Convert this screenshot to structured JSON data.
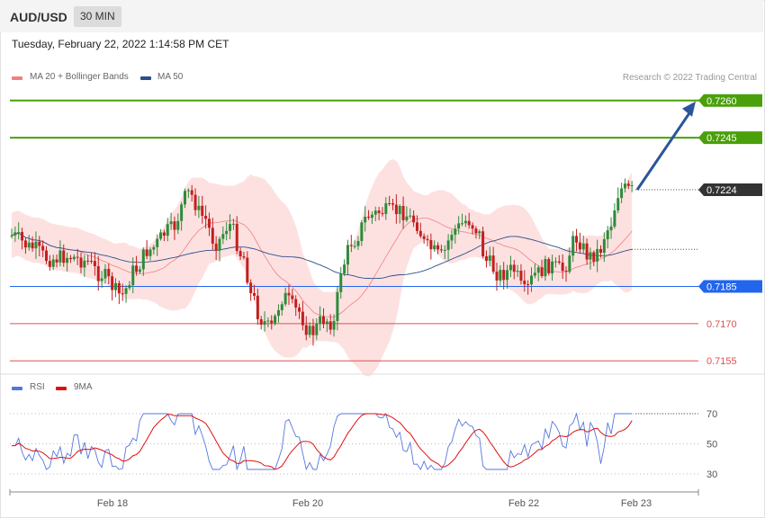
{
  "header": {
    "symbol": "AUD/USD",
    "timeframe": "30 MIN",
    "datetime": "Tuesday, February 22, 2022 1:14:58 PM CET",
    "credit": "Research © 2022 Trading Central"
  },
  "legend": {
    "ma20": "MA 20 + Bollinger Bands",
    "ma50": "MA 50",
    "rsi": "RSI",
    "rsi_ma": "9MA"
  },
  "colors": {
    "ma20": "#f08080",
    "ma50": "#2c4f8c",
    "bands": "#fde1e1",
    "up": "#2e8b3a",
    "down": "#c21f1f",
    "target": "#4aa00a",
    "pivot": "#2266ee",
    "support": "#e05050",
    "rsi": "#5577dd",
    "rsi_ma": "#dd1111",
    "arrow": "#2c5599",
    "price_tag": "#333333"
  },
  "chart_data": [
    {
      "type": "candlestick",
      "symbol": "AUD/USD",
      "timeframe": "30 MIN",
      "y_range": [
        0.715,
        0.7265
      ],
      "x_ticks": [
        "Feb 18",
        "Feb 20",
        "Feb 22",
        "Feb 23"
      ],
      "current_price": "0.7224",
      "levels": [
        {
          "value": "0.7260",
          "role": "target"
        },
        {
          "value": "0.7245",
          "role": "target"
        },
        {
          "value": "0.7185",
          "role": "pivot"
        },
        {
          "value": "0.7170",
          "role": "support"
        },
        {
          "value": "0.7155",
          "role": "support"
        }
      ],
      "series": [
        {
          "name": "MA 20 + Bollinger Bands"
        },
        {
          "name": "MA 50"
        }
      ]
    },
    {
      "type": "line",
      "y_ticks": [
        "70",
        "50",
        "30"
      ],
      "y_range": [
        20,
        80
      ],
      "series": [
        {
          "name": "RSI"
        },
        {
          "name": "9MA"
        }
      ]
    }
  ]
}
